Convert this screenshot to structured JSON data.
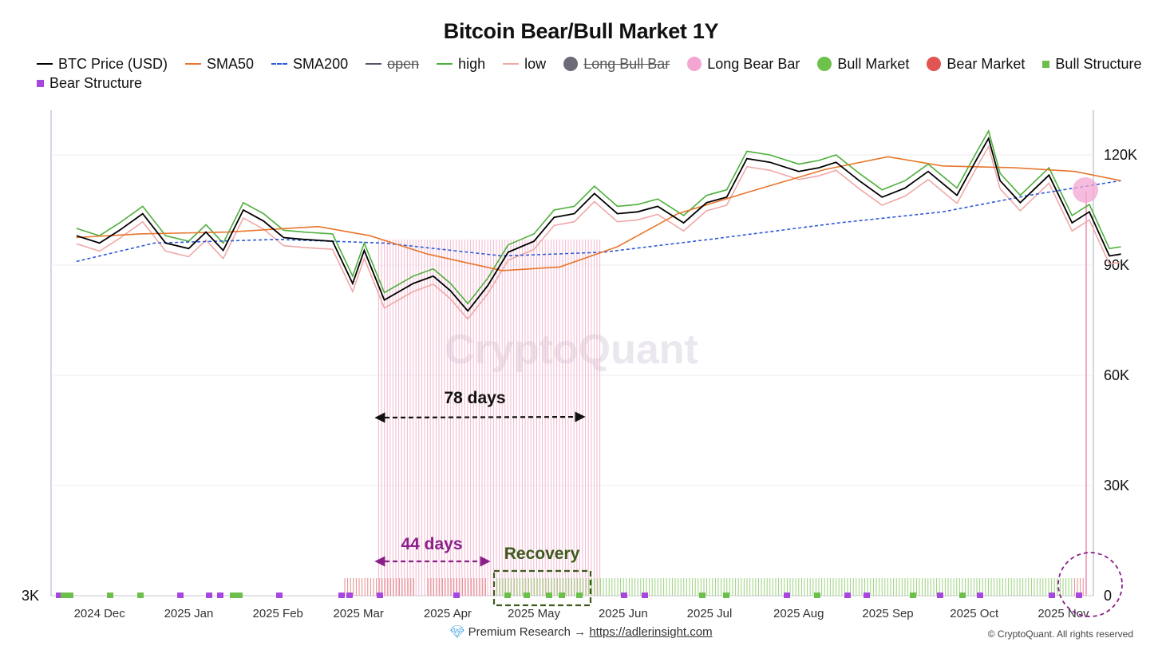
{
  "chart_data": {
    "type": "line",
    "title": "Bitcoin Bear/Bull Market 1Y",
    "y_right_ticks": [
      "120K",
      "90K",
      "60K",
      "30K",
      "0"
    ],
    "y_left_ticks": [
      "3K"
    ],
    "ylim": [
      0,
      130000
    ],
    "x_ticks": [
      "2024 Dec",
      "2025 Jan",
      "2025 Feb",
      "2025 Mar",
      "2025 Apr",
      "2025 May",
      "2025 Jun",
      "2025 Jul",
      "2025 Aug",
      "2025 Sep",
      "2025 Oct",
      "2025 Nov"
    ],
    "legend": [
      {
        "label": "BTC Price (USD)",
        "kind": "line",
        "color": "#000000",
        "enabled": true
      },
      {
        "label": "SMA50",
        "kind": "line",
        "color": "#e8762c",
        "enabled": true
      },
      {
        "label": "SMA200",
        "kind": "dash",
        "color": "#2f5bd8",
        "enabled": true
      },
      {
        "label": "open",
        "kind": "line",
        "color": "#555566",
        "enabled": false
      },
      {
        "label": "high",
        "kind": "line",
        "color": "#4caf3a",
        "enabled": true
      },
      {
        "label": "low",
        "kind": "line",
        "color": "#f0a8a8",
        "enabled": true
      },
      {
        "label": "Long Bull Bar",
        "kind": "dot",
        "color": "#6c6c78",
        "enabled": false
      },
      {
        "label": "Long Bear Bar",
        "kind": "dot",
        "color": "#f3a6d2",
        "enabled": true
      },
      {
        "label": "Bull Market",
        "kind": "dot",
        "color": "#6cc24a",
        "enabled": true
      },
      {
        "label": "Bear Market",
        "kind": "dot",
        "color": "#e05454",
        "enabled": true
      },
      {
        "label": "Bull Structure",
        "kind": "square",
        "color": "#6cbf4a",
        "enabled": true
      },
      {
        "label": "Bear Structure",
        "kind": "square",
        "color": "#a846e0",
        "enabled": true
      }
    ],
    "series": [
      {
        "name": "BTC Price (USD)",
        "x": [
          "2024-11-23",
          "2024-12-01",
          "2024-12-08",
          "2024-12-16",
          "2024-12-24",
          "2025-01-01",
          "2025-01-07",
          "2025-01-13",
          "2025-01-20",
          "2025-01-27",
          "2025-02-03",
          "2025-02-10",
          "2025-02-20",
          "2025-02-27",
          "2025-03-03",
          "2025-03-10",
          "2025-03-20",
          "2025-03-27",
          "2025-04-02",
          "2025-04-08",
          "2025-04-15",
          "2025-04-22",
          "2025-05-01",
          "2025-05-08",
          "2025-05-15",
          "2025-05-22",
          "2025-05-30",
          "2025-06-06",
          "2025-06-13",
          "2025-06-22",
          "2025-06-30",
          "2025-07-07",
          "2025-07-14",
          "2025-07-22",
          "2025-08-01",
          "2025-08-08",
          "2025-08-14",
          "2025-08-22",
          "2025-08-30",
          "2025-09-07",
          "2025-09-15",
          "2025-09-25",
          "2025-10-02",
          "2025-10-06",
          "2025-10-10",
          "2025-10-17",
          "2025-10-27",
          "2025-11-04",
          "2025-11-10",
          "2025-11-17",
          "2025-11-21"
        ],
        "values": [
          98000,
          96000,
          99500,
          104000,
          96000,
          94500,
          99000,
          94000,
          105000,
          102000,
          97500,
          97000,
          96500,
          85000,
          94000,
          80500,
          85000,
          87000,
          83000,
          77500,
          84500,
          93500,
          96500,
          103000,
          104000,
          109500,
          104000,
          104500,
          106000,
          101500,
          107000,
          108500,
          119000,
          118000,
          115500,
          116500,
          118000,
          113000,
          108500,
          111000,
          115500,
          109000,
          119000,
          124500,
          113000,
          107000,
          114500,
          101500,
          104500,
          92500,
          93000
        ]
      },
      {
        "name": "SMA50",
        "x": [
          "2024-11-23",
          "2024-12-15",
          "2025-01-15",
          "2025-02-15",
          "2025-03-05",
          "2025-03-25",
          "2025-04-20",
          "2025-05-10",
          "2025-05-30",
          "2025-06-20",
          "2025-07-15",
          "2025-08-10",
          "2025-09-01",
          "2025-09-20",
          "2025-10-15",
          "2025-11-05",
          "2025-11-21"
        ],
        "values": [
          97500,
          98500,
          99000,
          100500,
          98000,
          93000,
          88500,
          89500,
          95000,
          104000,
          110000,
          116000,
          119500,
          117000,
          116500,
          115500,
          113000
        ]
      },
      {
        "name": "SMA200",
        "x": [
          "2024-11-23",
          "2024-12-20",
          "2025-02-01",
          "2025-03-10",
          "2025-04-20",
          "2025-05-25",
          "2025-07-01",
          "2025-08-15",
          "2025-09-20",
          "2025-10-20",
          "2025-11-21"
        ],
        "values": [
          91000,
          96000,
          97000,
          96000,
          92500,
          93500,
          97000,
          101500,
          104500,
          109000,
          113000
        ]
      }
    ],
    "bear_market_period": {
      "start": "2025-03-08",
      "end": "2025-05-24"
    },
    "annotations": [
      {
        "text": "78 days",
        "color": "#111111"
      },
      {
        "text": "44 days",
        "color": "#8a1f8a"
      },
      {
        "text": "Recovery",
        "color": "#3d5a1c"
      }
    ],
    "watermark": "CryptoQuant",
    "grid": true
  },
  "footer": {
    "icon": "diamond-icon",
    "text": "Premium Research →",
    "link": "https://adlerinsight.com",
    "copyright": "© CryptoQuant. All rights reserved"
  }
}
